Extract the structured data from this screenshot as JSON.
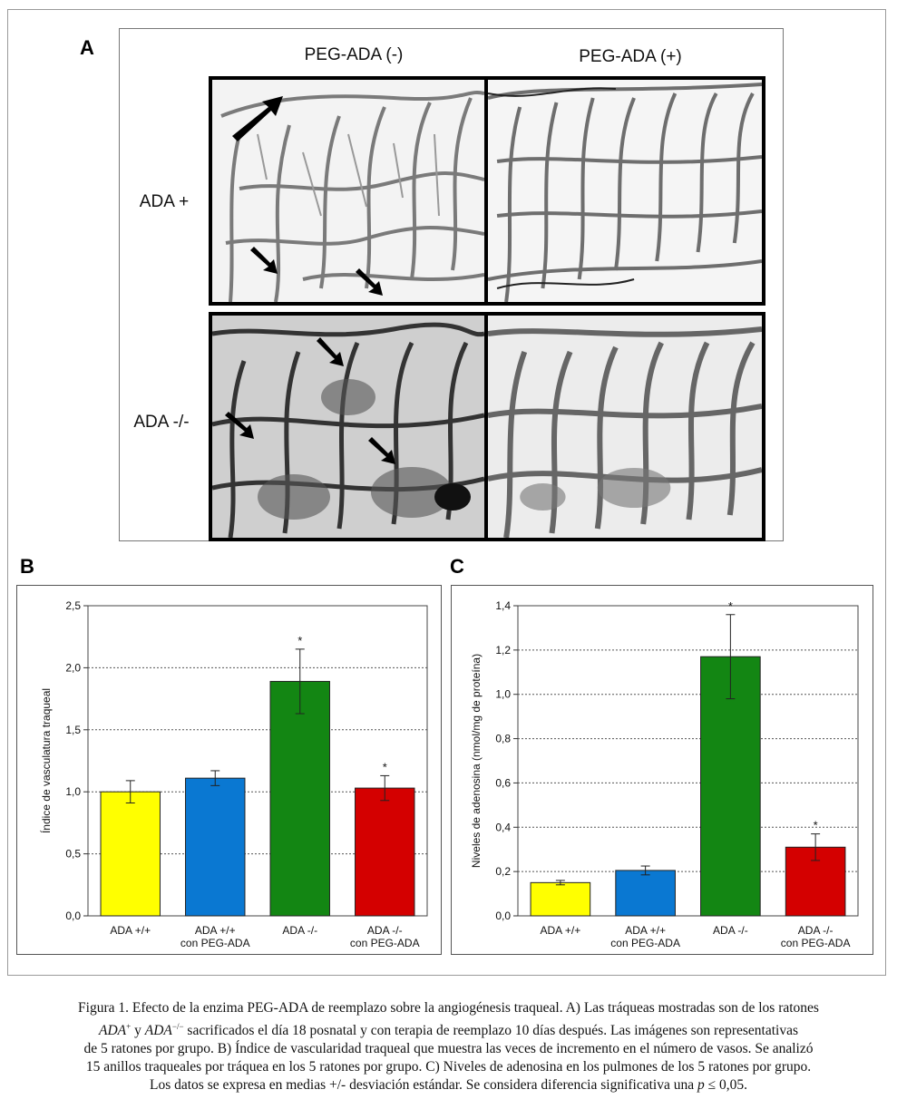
{
  "panel_a": {
    "letter": "A",
    "col_headers": [
      "PEG-ADA (-)",
      "PEG-ADA (+)"
    ],
    "row_headers": [
      "ADA +",
      "ADA -/-"
    ]
  },
  "chart_data": [
    {
      "letter": "B",
      "type": "bar",
      "ylabel": "Índice de vasculatura traqueal",
      "ylim": [
        0,
        2.5
      ],
      "ticks": [
        "0,0",
        "0,5",
        "1,0",
        "1,5",
        "2,0",
        "2,5"
      ],
      "tick_values": [
        0,
        0.5,
        1.0,
        1.5,
        2.0,
        2.5
      ],
      "grid": "dotted horizontal",
      "categories": [
        [
          "ADA +/+"
        ],
        [
          "ADA +/+",
          "con PEG-ADA"
        ],
        [
          "ADA -/-"
        ],
        [
          "ADA -/-",
          "con PEG-ADA"
        ]
      ],
      "values": [
        1.0,
        1.11,
        1.89,
        1.03
      ],
      "errors": [
        0.09,
        0.06,
        0.26,
        0.1
      ],
      "significance": [
        "",
        "",
        "*",
        "*"
      ],
      "colors": [
        "#ffff00",
        "#0a78d2",
        "#138613",
        "#d40000"
      ]
    },
    {
      "letter": "C",
      "type": "bar",
      "ylabel": "Niveles de adenosina (nmol/mg de proteína)",
      "ylim": [
        0,
        1.4
      ],
      "ticks": [
        "0,0",
        "0,2",
        "0,4",
        "0,6",
        "0,8",
        "1,0",
        "1,2",
        "1,4"
      ],
      "tick_values": [
        0,
        0.2,
        0.4,
        0.6,
        0.8,
        1.0,
        1.2,
        1.4
      ],
      "grid": "dotted horizontal",
      "categories": [
        [
          "ADA +/+"
        ],
        [
          "ADA +/+",
          "con PEG-ADA"
        ],
        [
          "ADA -/-"
        ],
        [
          "ADA -/-",
          "con PEG-ADA"
        ]
      ],
      "values": [
        0.15,
        0.205,
        1.17,
        0.31
      ],
      "errors": [
        0.01,
        0.02,
        0.19,
        0.06
      ],
      "significance": [
        "",
        "",
        "*",
        "*"
      ],
      "colors": [
        "#ffff00",
        "#0a78d2",
        "#138613",
        "#d40000"
      ]
    }
  ],
  "caption": {
    "line1": "Figura 1. Efecto de la enzima PEG-ADA de reemplazo sobre la angiogénesis traqueal. A) Las tráqueas mostradas son de los ratones",
    "line2_a": "ADA",
    "line2_a_sup": "+",
    "line2_b": " y ",
    "line2_c": "ADA",
    "line2_c_sup": "−/−",
    "line2_d": " sacrificados el día 18 posnatal y con terapia de reemplazo 10 días después. Las imágenes son representativas",
    "line3": "de 5 ratones por grupo. B) Índice de vascularidad traqueal que muestra las veces de incremento en el número de vasos. Se analizó",
    "line4": "15 anillos traqueales por tráquea en los 5 ratones por grupo. C) Niveles de adenosina en los pulmones de los 5 ratones por grupo.",
    "line5_a": "Los datos se expresa en medias +/- desviación estándar. Se considera diferencia significativa una ",
    "line5_b": "p",
    "line5_c": " ≤ 0,05."
  }
}
